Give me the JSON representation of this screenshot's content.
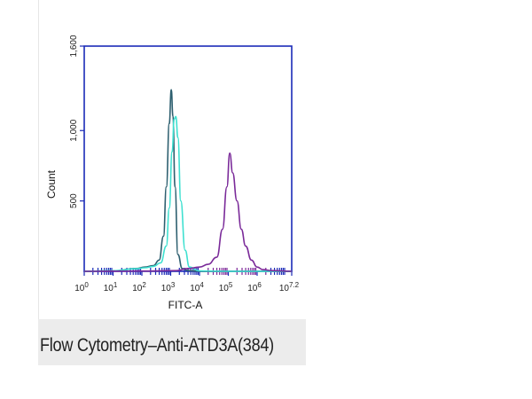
{
  "caption": {
    "title": "Flow Cytometry–Anti-ATD3A(384)",
    "subtitle": ""
  },
  "chart_data": {
    "type": "line",
    "xlabel": "FITC-A",
    "ylabel": "Count",
    "x_scale": "log10",
    "xlim": [
      0,
      7.2
    ],
    "ylim": [
      0,
      1600
    ],
    "y_ticks": [
      {
        "value": 500,
        "label": "500"
      },
      {
        "value": 1000,
        "label": "1,000"
      },
      {
        "value": 1600,
        "label": "1,600"
      }
    ],
    "x_ticks": [
      {
        "base": "10",
        "exp": "0",
        "value": 0
      },
      {
        "base": "10",
        "exp": "1",
        "value": 1
      },
      {
        "base": "10",
        "exp": "2",
        "value": 2
      },
      {
        "base": "10",
        "exp": "3",
        "value": 3
      },
      {
        "base": "10",
        "exp": "4",
        "value": 4
      },
      {
        "base": "10",
        "exp": "5",
        "value": 5
      },
      {
        "base": "10",
        "exp": "6",
        "value": 6
      },
      {
        "base": "10",
        "exp": "7.2",
        "value": 7.2
      }
    ],
    "series": [
      {
        "color": "#2d5f6f",
        "x": [
          0,
          1.0,
          1.8,
          2.1,
          2.4,
          2.6,
          2.75,
          2.85,
          2.95,
          3.02,
          3.08,
          3.15,
          3.25,
          3.4,
          3.6,
          4.0,
          5.0,
          6.0,
          7.2
        ],
        "y": [
          0,
          4,
          20,
          30,
          40,
          80,
          250,
          600,
          1050,
          1290,
          1100,
          600,
          120,
          20,
          5,
          0,
          0,
          0,
          0
        ]
      },
      {
        "color": "#3ee0d0",
        "x": [
          0,
          1.0,
          1.8,
          2.1,
          2.4,
          2.65,
          2.85,
          2.95,
          3.05,
          3.12,
          3.18,
          3.25,
          3.35,
          3.5,
          3.65,
          4.0,
          5.0,
          6.0,
          7.2
        ],
        "y": [
          0,
          4,
          18,
          25,
          35,
          60,
          180,
          450,
          850,
          1080,
          1100,
          950,
          500,
          150,
          30,
          3,
          0,
          0,
          0
        ]
      },
      {
        "color": "#7a2a99",
        "x": [
          0,
          2.0,
          3.2,
          3.6,
          4.0,
          4.3,
          4.6,
          4.8,
          4.95,
          5.05,
          5.15,
          5.3,
          5.45,
          5.6,
          5.8,
          6.0,
          6.2,
          6.5,
          7.2
        ],
        "y": [
          0,
          2,
          5,
          20,
          30,
          50,
          100,
          300,
          600,
          840,
          700,
          500,
          300,
          180,
          80,
          30,
          12,
          5,
          0
        ]
      }
    ]
  }
}
